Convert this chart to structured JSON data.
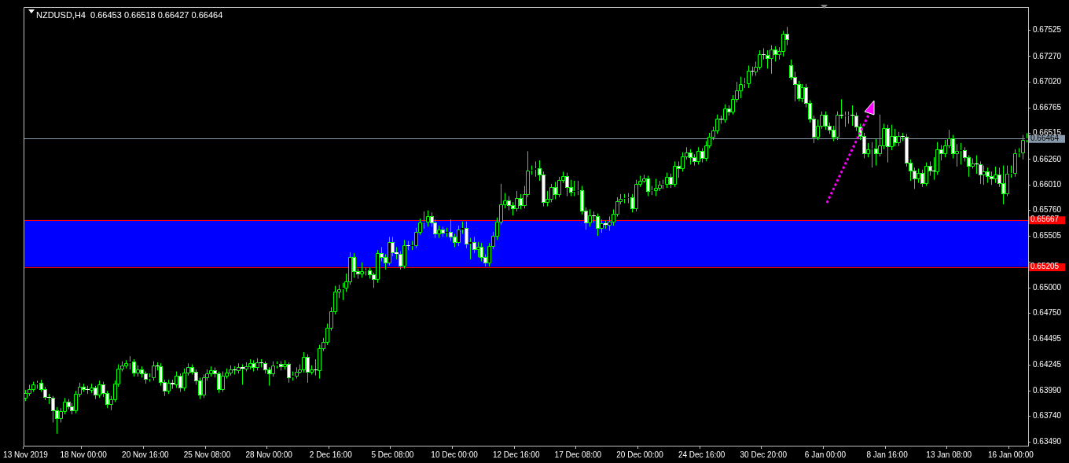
{
  "chart_data": {
    "type": "candlestick",
    "title": "NZDUSD,H4  0.66453 0.66518 0.66427 0.66464",
    "color": "#00ff00",
    "categories": [
      "13 Nov 2019",
      null,
      null,
      null,
      null,
      null,
      null,
      null,
      null,
      null,
      null,
      null,
      null,
      null,
      null,
      "18 Nov 00:00",
      null,
      null,
      null,
      null,
      null,
      null,
      null,
      null,
      null,
      null,
      null,
      null,
      null,
      null,
      null,
      "20 Nov 16:00",
      null,
      null,
      null,
      null,
      null,
      null,
      null,
      null,
      null,
      null,
      null,
      null,
      null,
      null,
      null,
      "25 Nov 08:00",
      null,
      null,
      null,
      null,
      null,
      null,
      null,
      null,
      null,
      null,
      null,
      null,
      null,
      null,
      null,
      "28 Nov 00:00",
      null,
      null,
      null,
      null,
      null,
      null,
      null,
      null,
      null,
      null,
      null,
      null,
      null,
      null,
      null,
      "2 Dec 16:00",
      null,
      null,
      null,
      null,
      null,
      null,
      null,
      null,
      null,
      null,
      null,
      null,
      null,
      null,
      null,
      "5 Dec 08:00",
      null,
      null,
      null,
      null,
      null,
      null,
      null,
      null,
      null,
      null,
      null,
      null,
      null,
      null,
      null,
      "10 Dec 00:00",
      null,
      null,
      null,
      null,
      null,
      null,
      null,
      null,
      null,
      null,
      null,
      null,
      null,
      null,
      null,
      "12 Dec 16:00",
      null,
      null,
      null,
      null,
      null,
      null,
      null,
      null,
      null,
      null,
      null,
      null,
      null,
      null,
      null,
      "17 Dec 08:00",
      null,
      null,
      null,
      null,
      null,
      null,
      null,
      null,
      null,
      null,
      null,
      null,
      null,
      null,
      null,
      "20 Dec 00:00",
      null,
      null,
      null,
      null,
      null,
      null,
      null,
      null,
      null,
      null,
      null,
      null,
      null,
      null,
      null,
      "24 Dec 16:00",
      null,
      null,
      null,
      null,
      null,
      null,
      null,
      null,
      null,
      null,
      null,
      null,
      null,
      null,
      null,
      "30 Dec 20:00",
      null,
      null,
      null,
      null,
      null,
      null,
      null,
      null,
      null,
      null,
      null,
      null,
      null,
      null,
      null,
      "6 Jan 00:00",
      null,
      null,
      null,
      null,
      null,
      null,
      null,
      null,
      null,
      null,
      null,
      null,
      null,
      null,
      null,
      "8 Jan 16:00",
      null,
      null,
      null,
      null,
      null,
      null,
      null,
      null,
      null,
      null,
      null,
      null,
      null,
      null,
      null,
      "13 Jan 08:00",
      null,
      null,
      null,
      null,
      null,
      null,
      null,
      null,
      null,
      null,
      null,
      null,
      null,
      null,
      null,
      "16 Jan 00:00",
      null,
      null,
      null,
      null
    ],
    "ohlc": [
      [
        0.6392,
        0.64,
        0.6389,
        0.6397
      ],
      [
        0.6397,
        0.6405,
        0.6394,
        0.6401
      ],
      [
        0.6401,
        0.6408,
        0.6398,
        0.6405
      ],
      [
        0.6405,
        0.6409,
        0.6401,
        0.6407
      ],
      [
        0.6407,
        0.641,
        0.6398,
        0.6401
      ],
      [
        0.6401,
        0.6403,
        0.639,
        0.6393
      ],
      [
        0.6393,
        0.6396,
        0.6386,
        0.6392
      ],
      [
        0.6392,
        0.6394,
        0.6368,
        0.638
      ],
      [
        0.638,
        0.6383,
        0.6357,
        0.6372
      ],
      [
        0.6372,
        0.6382,
        0.6368,
        0.6379
      ],
      [
        0.6379,
        0.6392,
        0.6376,
        0.6388
      ],
      [
        0.6388,
        0.6391,
        0.6381,
        0.6384
      ],
      [
        0.6384,
        0.6387,
        0.6376,
        0.638
      ],
      [
        0.638,
        0.6399,
        0.6377,
        0.6396
      ],
      [
        0.6396,
        0.6407,
        0.6393,
        0.6403
      ],
      [
        0.6403,
        0.6406,
        0.6398,
        0.6401
      ],
      [
        0.6401,
        0.6404,
        0.6396,
        0.64
      ],
      [
        0.64,
        0.6406,
        0.6397,
        0.6402
      ],
      [
        0.6402,
        0.6404,
        0.6391,
        0.6395
      ],
      [
        0.6395,
        0.6409,
        0.6392,
        0.6405
      ],
      [
        0.6405,
        0.6408,
        0.6393,
        0.6397
      ],
      [
        0.6397,
        0.6399,
        0.6382,
        0.6386
      ],
      [
        0.6386,
        0.6394,
        0.638,
        0.6391
      ],
      [
        0.6391,
        0.6409,
        0.6388,
        0.6406
      ],
      [
        0.6406,
        0.6425,
        0.6403,
        0.6421
      ],
      [
        0.6421,
        0.6428,
        0.6418,
        0.6424
      ],
      [
        0.6424,
        0.6429,
        0.6421,
        0.6426
      ],
      [
        0.6426,
        0.6433,
        0.642,
        0.6428
      ],
      [
        0.6428,
        0.643,
        0.6413,
        0.6417
      ],
      [
        0.6417,
        0.6424,
        0.6413,
        0.642
      ],
      [
        0.642,
        0.6423,
        0.6412,
        0.6416
      ],
      [
        0.6416,
        0.6418,
        0.6406,
        0.6411
      ],
      [
        0.6411,
        0.6416,
        0.6408,
        0.6412
      ],
      [
        0.6412,
        0.6428,
        0.6409,
        0.6424
      ],
      [
        0.6424,
        0.6427,
        0.6419,
        0.6423
      ],
      [
        0.6423,
        0.6426,
        0.6404,
        0.6408
      ],
      [
        0.6408,
        0.641,
        0.6394,
        0.6399
      ],
      [
        0.6399,
        0.641,
        0.6396,
        0.6407
      ],
      [
        0.6407,
        0.641,
        0.6401,
        0.6405
      ],
      [
        0.6405,
        0.6418,
        0.6402,
        0.6414
      ],
      [
        0.6414,
        0.6416,
        0.6398,
        0.6402
      ],
      [
        0.6402,
        0.6421,
        0.6399,
        0.6417
      ],
      [
        0.6417,
        0.6426,
        0.6414,
        0.6422
      ],
      [
        0.6422,
        0.6425,
        0.6415,
        0.6418
      ],
      [
        0.6418,
        0.642,
        0.6405,
        0.6409
      ],
      [
        0.6409,
        0.6412,
        0.6391,
        0.6395
      ],
      [
        0.6395,
        0.6415,
        0.6392,
        0.6412
      ],
      [
        0.6412,
        0.642,
        0.6409,
        0.6416
      ],
      [
        0.6416,
        0.6423,
        0.6413,
        0.6419
      ],
      [
        0.6419,
        0.6422,
        0.6412,
        0.6416
      ],
      [
        0.6416,
        0.6418,
        0.6397,
        0.6401
      ],
      [
        0.6401,
        0.6418,
        0.6398,
        0.6414
      ],
      [
        0.6414,
        0.6421,
        0.6411,
        0.6417
      ],
      [
        0.6417,
        0.6424,
        0.6414,
        0.642
      ],
      [
        0.642,
        0.6423,
        0.6415,
        0.6419
      ],
      [
        0.6419,
        0.6426,
        0.6416,
        0.6422
      ],
      [
        0.6422,
        0.6425,
        0.6405,
        0.6421
      ],
      [
        0.6421,
        0.6427,
        0.6418,
        0.6423
      ],
      [
        0.6423,
        0.643,
        0.642,
        0.6426
      ],
      [
        0.6426,
        0.6429,
        0.6418,
        0.6422
      ],
      [
        0.6422,
        0.6431,
        0.6419,
        0.6427
      ],
      [
        0.6427,
        0.643,
        0.6422,
        0.6426
      ],
      [
        0.6426,
        0.6428,
        0.6416,
        0.642
      ],
      [
        0.642,
        0.6422,
        0.6404,
        0.6416
      ],
      [
        0.6416,
        0.6428,
        0.6413,
        0.6424
      ],
      [
        0.6424,
        0.6428,
        0.6421,
        0.6425
      ],
      [
        0.6425,
        0.6428,
        0.6419,
        0.6423
      ],
      [
        0.6423,
        0.6429,
        0.642,
        0.6425
      ],
      [
        0.6425,
        0.6427,
        0.6407,
        0.6412
      ],
      [
        0.6412,
        0.6418,
        0.6409,
        0.6414
      ],
      [
        0.6414,
        0.6422,
        0.6411,
        0.6418
      ],
      [
        0.6418,
        0.6425,
        0.6416,
        0.642
      ],
      [
        0.642,
        0.6437,
        0.6417,
        0.6432
      ],
      [
        0.6432,
        0.6435,
        0.6407,
        0.6418
      ],
      [
        0.6418,
        0.6424,
        0.6415,
        0.642
      ],
      [
        0.642,
        0.643,
        0.6414,
        0.6419
      ],
      [
        0.6419,
        0.6444,
        0.6411,
        0.6441
      ],
      [
        0.6441,
        0.6451,
        0.6438,
        0.6447
      ],
      [
        0.6447,
        0.6465,
        0.6444,
        0.6461
      ],
      [
        0.6461,
        0.6481,
        0.6458,
        0.6477
      ],
      [
        0.6477,
        0.6502,
        0.6474,
        0.6496
      ],
      [
        0.6496,
        0.6503,
        0.649,
        0.6499
      ],
      [
        0.6499,
        0.6505,
        0.6488,
        0.65
      ],
      [
        0.65,
        0.6514,
        0.6496,
        0.6506
      ],
      [
        0.6506,
        0.6535,
        0.6503,
        0.653
      ],
      [
        0.653,
        0.6534,
        0.651,
        0.6516
      ],
      [
        0.6516,
        0.6519,
        0.6509,
        0.6514
      ],
      [
        0.6514,
        0.6525,
        0.651,
        0.6516
      ],
      [
        0.6516,
        0.652,
        0.6512,
        0.6517
      ],
      [
        0.6517,
        0.652,
        0.6509,
        0.6513
      ],
      [
        0.6513,
        0.6515,
        0.65,
        0.6509
      ],
      [
        0.6509,
        0.6537,
        0.6505,
        0.6534
      ],
      [
        0.6534,
        0.654,
        0.6526,
        0.653
      ],
      [
        0.653,
        0.6533,
        0.6518,
        0.6525
      ],
      [
        0.6525,
        0.655,
        0.6522,
        0.6545
      ],
      [
        0.6545,
        0.655,
        0.6531,
        0.6535
      ],
      [
        0.6535,
        0.654,
        0.6528,
        0.6533
      ],
      [
        0.6533,
        0.6536,
        0.6518,
        0.6522
      ],
      [
        0.6522,
        0.6547,
        0.6519,
        0.6542
      ],
      [
        0.6542,
        0.6546,
        0.6537,
        0.6541
      ],
      [
        0.6541,
        0.6546,
        0.6537,
        0.6542
      ],
      [
        0.6542,
        0.6559,
        0.6539,
        0.6555
      ],
      [
        0.6555,
        0.6568,
        0.6552,
        0.6564
      ],
      [
        0.6564,
        0.6575,
        0.6558,
        0.6565
      ],
      [
        0.6565,
        0.6576,
        0.656,
        0.657
      ],
      [
        0.657,
        0.6574,
        0.656,
        0.6564
      ],
      [
        0.6564,
        0.6567,
        0.6549,
        0.6553
      ],
      [
        0.6553,
        0.6561,
        0.6549,
        0.6557
      ],
      [
        0.6557,
        0.656,
        0.655,
        0.6554
      ],
      [
        0.6554,
        0.6559,
        0.655,
        0.6555
      ],
      [
        0.6555,
        0.6567,
        0.6546,
        0.655
      ],
      [
        0.655,
        0.6553,
        0.654,
        0.6545
      ],
      [
        0.6545,
        0.6561,
        0.6541,
        0.6557
      ],
      [
        0.6557,
        0.6565,
        0.6553,
        0.6559
      ],
      [
        0.6559,
        0.6565,
        0.6539,
        0.6543
      ],
      [
        0.6543,
        0.6549,
        0.6528,
        0.6545
      ],
      [
        0.6545,
        0.655,
        0.6534,
        0.6538
      ],
      [
        0.6538,
        0.6545,
        0.653,
        0.654
      ],
      [
        0.654,
        0.6544,
        0.6526,
        0.653
      ],
      [
        0.653,
        0.6533,
        0.6521,
        0.6525
      ],
      [
        0.6525,
        0.6544,
        0.6521,
        0.6541
      ],
      [
        0.6541,
        0.6555,
        0.6538,
        0.6551
      ],
      [
        0.6551,
        0.6569,
        0.6547,
        0.6565
      ],
      [
        0.6565,
        0.6602,
        0.6562,
        0.6582
      ],
      [
        0.6582,
        0.6593,
        0.6578,
        0.6586
      ],
      [
        0.6586,
        0.659,
        0.6576,
        0.6581
      ],
      [
        0.6581,
        0.6584,
        0.6571,
        0.6578
      ],
      [
        0.6578,
        0.6595,
        0.6575,
        0.6588
      ],
      [
        0.6588,
        0.6592,
        0.6577,
        0.6581
      ],
      [
        0.6581,
        0.66,
        0.6578,
        0.6592
      ],
      [
        0.6592,
        0.6634,
        0.6589,
        0.6615
      ],
      [
        0.6615,
        0.662,
        0.6611,
        0.6616
      ],
      [
        0.6616,
        0.6624,
        0.6609,
        0.6617
      ],
      [
        0.6617,
        0.6625,
        0.6605,
        0.6611
      ],
      [
        0.6611,
        0.6614,
        0.658,
        0.6584
      ],
      [
        0.6584,
        0.6595,
        0.658,
        0.6587
      ],
      [
        0.6587,
        0.6602,
        0.6584,
        0.6599
      ],
      [
        0.6599,
        0.6604,
        0.6587,
        0.6592
      ],
      [
        0.6592,
        0.6609,
        0.6589,
        0.6606
      ],
      [
        0.6606,
        0.6614,
        0.6603,
        0.661
      ],
      [
        0.661,
        0.6613,
        0.659,
        0.6599
      ],
      [
        0.6599,
        0.6606,
        0.659,
        0.6594
      ],
      [
        0.6594,
        0.6605,
        0.659,
        0.6595
      ],
      [
        0.6595,
        0.6605,
        0.6591,
        0.6596
      ],
      [
        0.6596,
        0.66,
        0.6572,
        0.6576
      ],
      [
        0.6576,
        0.6579,
        0.6557,
        0.6564
      ],
      [
        0.6564,
        0.6577,
        0.656,
        0.6571
      ],
      [
        0.6571,
        0.6575,
        0.6564,
        0.657
      ],
      [
        0.657,
        0.6573,
        0.6551,
        0.6559
      ],
      [
        0.6559,
        0.6567,
        0.6554,
        0.6563
      ],
      [
        0.6563,
        0.6566,
        0.6558,
        0.6562
      ],
      [
        0.6562,
        0.657,
        0.6556,
        0.6565
      ],
      [
        0.6565,
        0.6577,
        0.6561,
        0.6573
      ],
      [
        0.6573,
        0.6589,
        0.657,
        0.6585
      ],
      [
        0.6585,
        0.6592,
        0.6582,
        0.6587
      ],
      [
        0.6587,
        0.6592,
        0.6583,
        0.6588
      ],
      [
        0.6588,
        0.6593,
        0.6583,
        0.6589
      ],
      [
        0.6589,
        0.6592,
        0.6574,
        0.6578
      ],
      [
        0.6578,
        0.6606,
        0.6575,
        0.6602
      ],
      [
        0.6602,
        0.661,
        0.6599,
        0.6605
      ],
      [
        0.6605,
        0.6611,
        0.6603,
        0.6607
      ],
      [
        0.6607,
        0.661,
        0.659,
        0.6595
      ],
      [
        0.6595,
        0.66,
        0.6591,
        0.6596
      ],
      [
        0.6596,
        0.6607,
        0.659,
        0.6598
      ],
      [
        0.6598,
        0.6605,
        0.6595,
        0.6601
      ],
      [
        0.6601,
        0.6606,
        0.6597,
        0.6602
      ],
      [
        0.6602,
        0.6613,
        0.6598,
        0.6609
      ],
      [
        0.6609,
        0.6612,
        0.6598,
        0.6602
      ],
      [
        0.6602,
        0.6624,
        0.6599,
        0.662
      ],
      [
        0.662,
        0.6624,
        0.6608,
        0.6617
      ],
      [
        0.6617,
        0.6633,
        0.6614,
        0.6629
      ],
      [
        0.6629,
        0.6638,
        0.6626,
        0.6633
      ],
      [
        0.6633,
        0.6636,
        0.6621,
        0.6628
      ],
      [
        0.6628,
        0.6631,
        0.662,
        0.6624
      ],
      [
        0.6624,
        0.6638,
        0.6621,
        0.6634
      ],
      [
        0.6634,
        0.6637,
        0.6623,
        0.6627
      ],
      [
        0.6627,
        0.6644,
        0.6624,
        0.664
      ],
      [
        0.664,
        0.6652,
        0.6637,
        0.6648
      ],
      [
        0.6648,
        0.6658,
        0.6645,
        0.6654
      ],
      [
        0.6654,
        0.667,
        0.6651,
        0.6666
      ],
      [
        0.6666,
        0.6669,
        0.6661,
        0.6665
      ],
      [
        0.6665,
        0.668,
        0.6662,
        0.6676
      ],
      [
        0.6676,
        0.6679,
        0.6669,
        0.6673
      ],
      [
        0.6673,
        0.6689,
        0.667,
        0.6685
      ],
      [
        0.6685,
        0.6702,
        0.6682,
        0.6694
      ],
      [
        0.6694,
        0.6707,
        0.6686,
        0.67
      ],
      [
        0.67,
        0.6706,
        0.6696,
        0.6701
      ],
      [
        0.6701,
        0.6718,
        0.6696,
        0.6713
      ],
      [
        0.6713,
        0.6717,
        0.6708,
        0.6712
      ],
      [
        0.6712,
        0.6722,
        0.6708,
        0.6717
      ],
      [
        0.6717,
        0.6733,
        0.6714,
        0.6729
      ],
      [
        0.6729,
        0.6735,
        0.6724,
        0.6728
      ],
      [
        0.6728,
        0.6733,
        0.6715,
        0.6725
      ],
      [
        0.6725,
        0.6738,
        0.671,
        0.6734
      ],
      [
        0.6734,
        0.6737,
        0.6722,
        0.6729
      ],
      [
        0.6729,
        0.6736,
        0.6724,
        0.6732
      ],
      [
        0.6732,
        0.6752,
        0.6727,
        0.6749
      ],
      [
        0.6749,
        0.6756,
        0.6738,
        0.6744
      ],
      [
        0.6718,
        0.6724,
        0.6704,
        0.6707
      ],
      [
        0.6707,
        0.6712,
        0.6683,
        0.67
      ],
      [
        0.67,
        0.6703,
        0.6683,
        0.6686
      ],
      [
        0.6686,
        0.67,
        0.6682,
        0.6697
      ],
      [
        0.6697,
        0.67,
        0.6677,
        0.6681
      ],
      [
        0.6681,
        0.6684,
        0.6662,
        0.6666
      ],
      [
        0.6666,
        0.6669,
        0.6642,
        0.6648
      ],
      [
        0.6648,
        0.6665,
        0.6645,
        0.6659
      ],
      [
        0.6659,
        0.6673,
        0.6656,
        0.667
      ],
      [
        0.667,
        0.6673,
        0.6655,
        0.6659
      ],
      [
        0.6659,
        0.6662,
        0.6651,
        0.6655
      ],
      [
        0.6655,
        0.6659,
        0.6644,
        0.6648
      ],
      [
        0.6648,
        0.6673,
        0.6645,
        0.667
      ],
      [
        0.667,
        0.6685,
        0.6666,
        0.6669
      ],
      [
        0.6669,
        0.6673,
        0.6658,
        0.6669
      ],
      [
        0.6669,
        0.6673,
        0.6661,
        0.667
      ],
      [
        0.667,
        0.6679,
        0.6659,
        0.6669
      ],
      [
        0.6669,
        0.6672,
        0.6654,
        0.6658
      ],
      [
        0.6658,
        0.6661,
        0.6645,
        0.6649
      ],
      [
        0.6649,
        0.6652,
        0.6627,
        0.6632
      ],
      [
        0.6632,
        0.6642,
        0.6628,
        0.6636
      ],
      [
        0.6636,
        0.6643,
        0.6618,
        0.6637
      ],
      [
        0.6637,
        0.6646,
        0.662,
        0.6632
      ],
      [
        0.6632,
        0.667,
        0.6629,
        0.664
      ],
      [
        0.664,
        0.6661,
        0.6636,
        0.6657
      ],
      [
        0.6657,
        0.666,
        0.6623,
        0.6639
      ],
      [
        0.6639,
        0.666,
        0.6635,
        0.6649
      ],
      [
        0.6649,
        0.6656,
        0.6639,
        0.6643
      ],
      [
        0.6643,
        0.6653,
        0.6639,
        0.6649
      ],
      [
        0.6649,
        0.6652,
        0.6644,
        0.6648
      ],
      [
        0.6648,
        0.6651,
        0.6619,
        0.6623
      ],
      [
        0.6623,
        0.6626,
        0.6605,
        0.6615
      ],
      [
        0.6615,
        0.6618,
        0.6597,
        0.6607
      ],
      [
        0.6607,
        0.6617,
        0.6603,
        0.6613
      ],
      [
        0.6613,
        0.6616,
        0.6599,
        0.6603
      ],
      [
        0.6603,
        0.6623,
        0.66,
        0.662
      ],
      [
        0.662,
        0.6624,
        0.661,
        0.6615
      ],
      [
        0.6615,
        0.6628,
        0.6606,
        0.6614
      ],
      [
        0.6614,
        0.6643,
        0.6611,
        0.6636
      ],
      [
        0.6636,
        0.664,
        0.6625,
        0.6632
      ],
      [
        0.6632,
        0.6645,
        0.6628,
        0.664
      ],
      [
        0.664,
        0.6655,
        0.6637,
        0.6647
      ],
      [
        0.6647,
        0.665,
        0.6627,
        0.6632
      ],
      [
        0.6632,
        0.6641,
        0.6619,
        0.6634
      ],
      [
        0.6634,
        0.6642,
        0.6621,
        0.6635
      ],
      [
        0.6635,
        0.6638,
        0.6624,
        0.6628
      ],
      [
        0.6628,
        0.663,
        0.6609,
        0.662
      ],
      [
        0.662,
        0.6627,
        0.6617,
        0.6622
      ],
      [
        0.6622,
        0.663,
        0.6612,
        0.6621
      ],
      [
        0.6621,
        0.6624,
        0.6602,
        0.6611
      ],
      [
        0.6611,
        0.662,
        0.6601,
        0.6614
      ],
      [
        0.6614,
        0.6618,
        0.6603,
        0.661
      ],
      [
        0.661,
        0.6614,
        0.6601,
        0.6607
      ],
      [
        0.6607,
        0.6619,
        0.6603,
        0.6611
      ],
      [
        0.6611,
        0.6618,
        0.6599,
        0.6603
      ],
      [
        0.6603,
        0.662,
        0.6582,
        0.6593
      ],
      [
        0.6593,
        0.662,
        0.659,
        0.6612
      ],
      [
        0.6612,
        0.662,
        0.6608,
        0.6613
      ],
      [
        0.6613,
        0.6636,
        0.6609,
        0.6632
      ],
      [
        0.6632,
        0.6637,
        0.6628,
        0.6633
      ],
      [
        0.6633,
        0.665,
        0.6626,
        0.6645
      ],
      [
        0.66453,
        0.66518,
        0.66427,
        0.66464
      ]
    ],
    "colors": [
      "#000000",
      "#000000",
      "#000000",
      "#000000",
      "#ffffff",
      "#ffffff",
      "#ffffff",
      "#ffffff",
      "#ffffff",
      "#000000",
      "#000000",
      "#ffffff",
      "#ffffff",
      "#000000",
      "#000000",
      "#ffffff",
      "#ffffff",
      "#000000",
      "#ffffff",
      "#000000",
      "#ffffff",
      "#ffffff",
      "#000000",
      "#000000",
      "#000000",
      "#000000",
      "#000000",
      "#000000",
      "#ffffff",
      "#000000",
      "#ffffff",
      "#ffffff",
      "#000000",
      "#000000",
      "#ffffff",
      "#ffffff",
      "#ffffff",
      "#000000",
      "#ffffff",
      "#000000",
      "#ffffff",
      "#000000",
      "#000000",
      "#ffffff",
      "#ffffff",
      "#ffffff",
      "#000000",
      "#000000",
      "#000000",
      "#ffffff",
      "#ffffff",
      "#000000",
      "#000000",
      "#000000",
      "#ffffff",
      "#000000",
      "#ffffff",
      "#000000",
      "#000000",
      "#ffffff",
      "#000000",
      "#ffffff",
      "#ffffff",
      "#ffffff",
      "#000000",
      "#000000",
      "#ffffff",
      "#000000",
      "#ffffff",
      "#000000",
      "#000000",
      "#000000",
      "#000000",
      "#ffffff",
      "#000000",
      "#ffffff",
      "#000000",
      "#000000",
      "#000000",
      "#000000",
      "#000000",
      "#000000",
      "#000000",
      "#000000",
      "#000000",
      "#ffffff",
      "#ffffff",
      "#000000",
      "#000000",
      "#ffffff",
      "#ffffff",
      "#000000",
      "#ffffff",
      "#ffffff",
      "#000000",
      "#ffffff",
      "#ffffff",
      "#ffffff",
      "#000000",
      "#ffffff",
      "#000000",
      "#000000",
      "#000000",
      "#000000",
      "#000000",
      "#ffffff",
      "#ffffff",
      "#000000",
      "#ffffff",
      "#000000",
      "#ffffff",
      "#ffffff",
      "#000000",
      "#000000",
      "#ffffff",
      "#000000",
      "#ffffff",
      "#000000",
      "#ffffff",
      "#ffffff",
      "#000000",
      "#000000",
      "#000000",
      "#000000",
      "#000000",
      "#ffffff",
      "#ffffff",
      "#000000",
      "#ffffff",
      "#000000",
      "#000000",
      "#000000",
      "#000000",
      "#ffffff",
      "#ffffff",
      "#000000",
      "#000000",
      "#ffffff",
      "#000000",
      "#000000",
      "#ffffff",
      "#ffffff",
      "#000000",
      "#000000",
      "#ffffff",
      "#ffffff",
      "#000000",
      "#ffffff",
      "#ffffff",
      "#000000",
      "#ffffff",
      "#000000",
      "#000000",
      "#000000",
      "#000000",
      "#000000",
      "#000000",
      "#ffffff",
      "#000000",
      "#000000",
      "#000000",
      "#ffffff",
      "#000000",
      "#000000",
      "#000000",
      "#000000",
      "#000000",
      "#ffffff",
      "#000000",
      "#ffffff",
      "#000000",
      "#000000",
      "#ffffff",
      "#ffffff",
      "#000000",
      "#ffffff",
      "#000000",
      "#000000",
      "#000000",
      "#000000",
      "#ffffff",
      "#000000",
      "#ffffff",
      "#000000",
      "#000000",
      "#000000",
      "#000000",
      "#000000",
      "#ffffff",
      "#000000",
      "#000000",
      "#ffffff",
      "#ffffff",
      "#000000",
      "#ffffff",
      "#000000",
      "#000000",
      "#ffffff",
      "#ffffff",
      "#ffffff",
      "#ffffff",
      "#000000",
      "#ffffff",
      "#ffffff",
      "#ffffff",
      "#000000",
      "#000000",
      "#ffffff",
      "#ffffff",
      "#ffffff",
      "#000000",
      "#ffffff",
      "#000000",
      "#000000",
      "#ffffff",
      "#ffffff",
      "#ffffff",
      "#ffffff",
      "#000000",
      "#000000",
      "#ffffff",
      "#000000",
      "#000000",
      "#ffffff",
      "#000000",
      "#ffffff",
      "#000000",
      "#ffffff",
      "#ffffff",
      "#ffffff",
      "#ffffff",
      "#000000",
      "#ffffff",
      "#000000",
      "#ffffff",
      "#ffffff",
      "#000000",
      "#ffffff",
      "#000000",
      "#000000",
      "#ffffff",
      "#000000",
      "#000000",
      "#ffffff",
      "#ffffff",
      "#000000",
      "#ffffff",
      "#ffffff",
      "#000000",
      "#ffffff",
      "#ffffff",
      "#000000",
      "#ffffff",
      "#ffffff",
      "#000000",
      "#000000",
      "#000000",
      "#000000",
      "#000000",
      "#000000"
    ],
    "ylim": [
      0.63452,
      0.67754
    ],
    "yticks": [
      0.67525,
      {
        "value": 0.6727,
        "label": "0.67270"
      },
      {
        "value": 0.6702,
        "label": "0.67020"
      },
      0.66765,
      0.66515,
      {
        "value": 0.6626,
        "label": "0.66260"
      },
      {
        "value": 0.6601,
        "label": "0.66010"
      },
      {
        "value": 0.6576,
        "label": "0.65760"
      },
      0.65505,
      {
        "value": 0.65255,
        "label": null
      },
      {
        "value": 0.65,
        "label": "0.65000"
      },
      {
        "value": 0.6475,
        "label": "0.64750"
      },
      0.64495,
      0.64245,
      {
        "value": 0.6399,
        "label": "0.63990"
      },
      {
        "value": 0.6374,
        "label": "0.63740"
      },
      {
        "value": 0.6349,
        "label": "0.63490"
      }
    ],
    "ref_lines": [
      {
        "axis": "y",
        "value": 0.66464,
        "label": "0.66464",
        "color": "#8899aa"
      },
      {
        "axis": "y",
        "value": 0.65667,
        "label": "0.65667",
        "color": "#ff0000"
      },
      {
        "axis": "y",
        "value": 0.65205,
        "label": "0.65205",
        "color": "#ff0000"
      }
    ],
    "bands": [
      {
        "axis": "y",
        "from": 0.65205,
        "to": 0.65667,
        "color": "#0000ff"
      }
    ]
  }
}
